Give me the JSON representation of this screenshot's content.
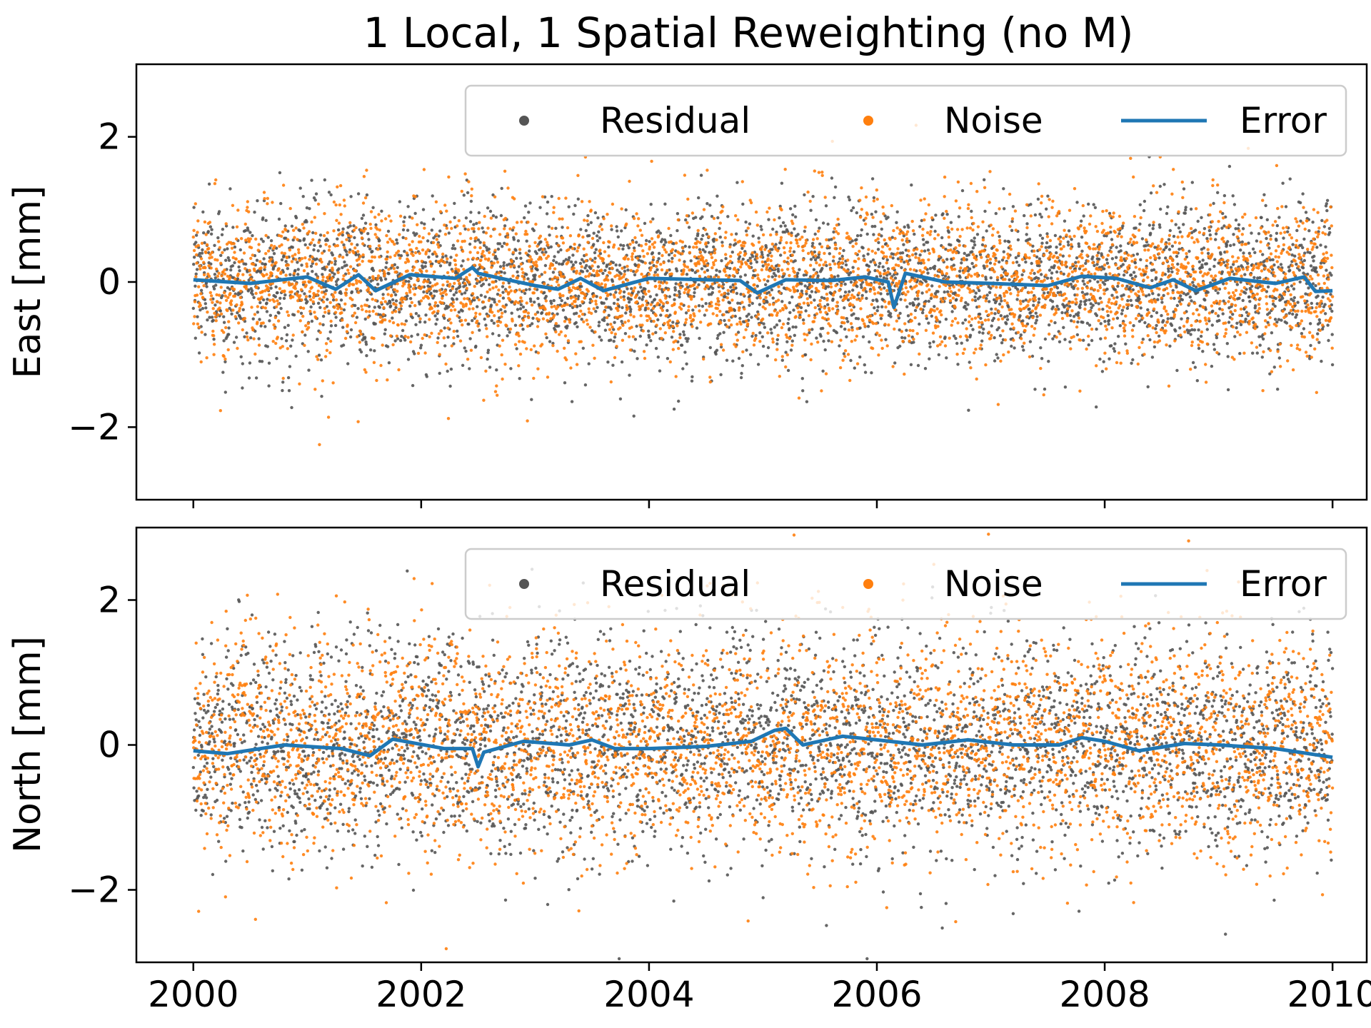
{
  "chart_data": {
    "type": "scatter",
    "title": "1 Local, 1 Spatial Reweighting (no M)",
    "xlabel": "",
    "xlim": [
      1999.5,
      2010.3
    ],
    "xticks": [
      2000,
      2002,
      2004,
      2006,
      2008,
      2010
    ],
    "x_tick_labels": [
      "2000",
      "2002",
      "2004",
      "2006",
      "2008",
      "2010"
    ],
    "x_range_of_data": [
      2000.0,
      2010.0
    ],
    "legend": {
      "placement": "top-right",
      "entries": [
        {
          "label": "Residual",
          "marker": "dot",
          "color": "#555555"
        },
        {
          "label": "Noise",
          "marker": "dot",
          "color": "#ff7f0e"
        },
        {
          "label": "Error",
          "marker": "line",
          "color": "#1f77b4"
        }
      ]
    },
    "panels": [
      {
        "id": "east",
        "ylabel": "East [mm]",
        "ylim": [
          -3,
          3
        ],
        "yticks": [
          -2,
          0,
          2
        ],
        "y_tick_labels": [
          "−2",
          "0",
          "2"
        ],
        "series": [
          {
            "name": "Residual",
            "kind": "scatter",
            "color": "#555555",
            "n_points": 3650,
            "mean": 0.0,
            "std": 0.55
          },
          {
            "name": "Noise",
            "kind": "scatter",
            "color": "#ff7f0e",
            "n_points": 3650,
            "mean": 0.0,
            "std": 0.55
          },
          {
            "name": "Error",
            "kind": "line",
            "color": "#1f77b4",
            "x": [
              2000.0,
              2000.5,
              2001.0,
              2001.25,
              2001.45,
              2001.6,
              2001.9,
              2002.3,
              2002.45,
              2002.5,
              2002.7,
              2003.0,
              2003.2,
              2003.4,
              2003.6,
              2004.0,
              2004.5,
              2004.8,
              2004.95,
              2005.2,
              2005.6,
              2005.9,
              2006.1,
              2006.15,
              2006.25,
              2006.6,
              2007.0,
              2007.5,
              2007.8,
              2008.1,
              2008.4,
              2008.6,
              2008.8,
              2009.1,
              2009.5,
              2009.75,
              2009.85,
              2010.0
            ],
            "y": [
              0.03,
              -0.02,
              0.07,
              -0.1,
              0.1,
              -0.12,
              0.1,
              0.05,
              0.2,
              0.12,
              0.05,
              -0.05,
              -0.1,
              0.05,
              -0.12,
              0.05,
              0.03,
              0.02,
              -0.15,
              0.03,
              0.02,
              0.07,
              0.0,
              -0.35,
              0.12,
              0.0,
              -0.02,
              -0.05,
              0.08,
              0.05,
              -0.08,
              0.03,
              -0.12,
              0.05,
              -0.02,
              0.07,
              -0.13,
              -0.12
            ]
          }
        ]
      },
      {
        "id": "north",
        "ylabel": "North [mm]",
        "ylim": [
          -3,
          3
        ],
        "yticks": [
          -2,
          0,
          2
        ],
        "y_tick_labels": [
          "−2",
          "0",
          "2"
        ],
        "series": [
          {
            "name": "Residual",
            "kind": "scatter",
            "color": "#555555",
            "n_points": 3650,
            "mean": 0.0,
            "std": 0.75
          },
          {
            "name": "Noise",
            "kind": "scatter",
            "color": "#ff7f0e",
            "n_points": 3650,
            "mean": 0.0,
            "std": 0.75
          },
          {
            "name": "Error",
            "kind": "line",
            "color": "#1f77b4",
            "x": [
              2000.0,
              2000.3,
              2000.8,
              2001.3,
              2001.55,
              2001.75,
              2002.2,
              2002.45,
              2002.5,
              2002.55,
              2002.9,
              2003.3,
              2003.5,
              2003.7,
              2004.0,
              2004.5,
              2004.9,
              2005.1,
              2005.2,
              2005.35,
              2005.7,
              2006.0,
              2006.4,
              2006.8,
              2007.2,
              2007.6,
              2007.8,
              2008.0,
              2008.3,
              2008.7,
              2009.0,
              2009.5,
              2010.0
            ],
            "y": [
              -0.08,
              -0.12,
              0.0,
              -0.05,
              -0.15,
              0.08,
              -0.05,
              -0.05,
              -0.3,
              -0.1,
              0.05,
              0.0,
              0.07,
              -0.05,
              -0.05,
              -0.02,
              0.05,
              0.2,
              0.23,
              0.0,
              0.12,
              0.07,
              0.0,
              0.07,
              0.0,
              0.0,
              0.1,
              0.05,
              -0.08,
              0.02,
              0.0,
              -0.05,
              -0.17
            ]
          }
        ]
      }
    ]
  }
}
